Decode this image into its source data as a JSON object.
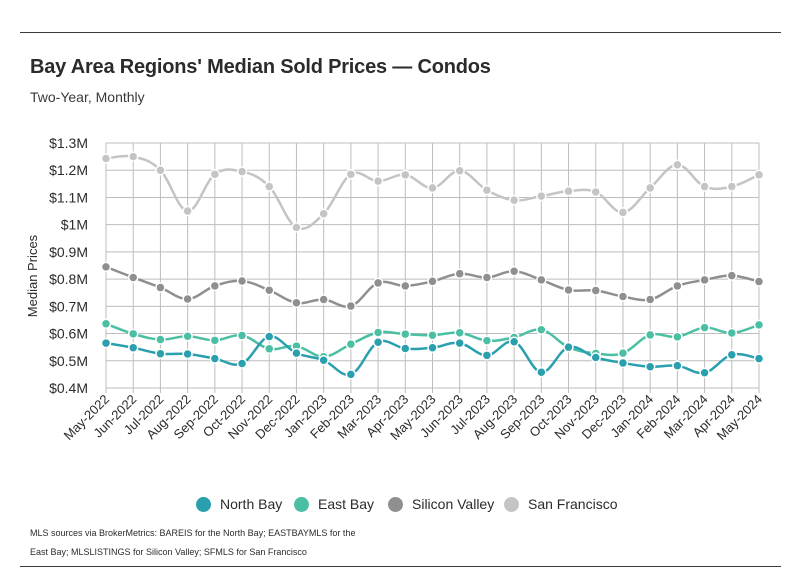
{
  "title": "Bay Area Regions' Median Sold Prices — Condos",
  "subtitle": "Two-Year, Monthly",
  "footnote": "MLS sources via BrokerMetrics: BAREIS for the North Bay; EASTBAYMLS for the East Bay; MLSLISTINGS for Silicon Valley; SFMLS for San Francisco",
  "chart_data": {
    "type": "line",
    "title": "Bay Area Regions' Median Sold Prices — Condos",
    "subtitle": "Two-Year, Monthly",
    "xlabel": "",
    "ylabel": "Median Prices",
    "ylim": [
      400000,
      1300000
    ],
    "yticks": [
      400000,
      500000,
      600000,
      700000,
      800000,
      900000,
      1000000,
      1100000,
      1200000,
      1300000
    ],
    "ytick_labels": [
      "$0.4M",
      "$0.5M",
      "$0.6M",
      "$0.7M",
      "$0.8M",
      "$0.9M",
      "$1M",
      "$1.1M",
      "$1.2M",
      "$1.3M"
    ],
    "grid": true,
    "legend_position": "bottom",
    "categories": [
      "May-2022",
      "Jun-2022",
      "Jul-2022",
      "Aug-2022",
      "Sep-2022",
      "Oct-2022",
      "Nov-2022",
      "Dec-2022",
      "Jan-2023",
      "Feb-2023",
      "Mar-2023",
      "Apr-2023",
      "May-2023",
      "Jun-2023",
      "Jul-2023",
      "Aug-2023",
      "Sep-2023",
      "Oct-2023",
      "Nov-2023",
      "Dec-2023",
      "Jan-2024",
      "Feb-2024",
      "Mar-2024",
      "Apr-2024",
      "May-2024"
    ],
    "series": [
      {
        "name": "North Bay",
        "color": "#2a9fae",
        "values": [
          565000,
          548000,
          526000,
          525000,
          508000,
          490000,
          589000,
          528000,
          502000,
          450000,
          568000,
          545000,
          548000,
          565000,
          520000,
          570000,
          458000,
          550000,
          512000,
          492000,
          478000,
          482000,
          456000,
          522000,
          508000
        ]
      },
      {
        "name": "East Bay",
        "color": "#4bbfa3",
        "values": [
          636000,
          599000,
          578000,
          590000,
          575000,
          593000,
          544000,
          554000,
          515000,
          561000,
          604000,
          598000,
          594000,
          603000,
          574000,
          586000,
          614000,
          550000,
          527000,
          528000,
          595000,
          588000,
          622000,
          602000,
          632000
        ]
      },
      {
        "name": "Silicon Valley",
        "color": "#8f8f8f",
        "values": [
          845000,
          806000,
          769000,
          727000,
          775000,
          793000,
          759000,
          713000,
          725000,
          701000,
          786000,
          775000,
          792000,
          820000,
          806000,
          829000,
          797000,
          760000,
          758000,
          736000,
          725000,
          775000,
          797000,
          813000,
          791000
        ]
      },
      {
        "name": "San Francisco",
        "color": "#c4c4c4",
        "values": [
          1243000,
          1250000,
          1200000,
          1050000,
          1185000,
          1195000,
          1140000,
          990000,
          1040000,
          1185000,
          1160000,
          1183000,
          1135000,
          1198000,
          1127000,
          1090000,
          1105000,
          1123000,
          1120000,
          1045000,
          1135000,
          1220000,
          1140000,
          1140000,
          1183000
        ]
      }
    ]
  }
}
